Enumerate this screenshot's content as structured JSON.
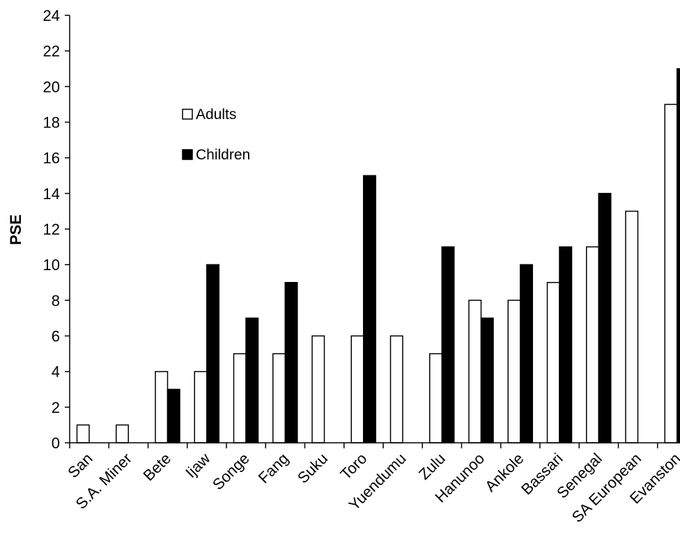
{
  "chart_data": {
    "type": "bar",
    "title": "",
    "xlabel": "",
    "ylabel": "PSE",
    "ylim": [
      0,
      24
    ],
    "yticks": [
      0,
      2,
      4,
      6,
      8,
      10,
      12,
      14,
      16,
      18,
      20,
      22,
      24
    ],
    "grid": false,
    "legend_position": "upper-left",
    "categories": [
      "San",
      "S.A. Miner",
      "Bete",
      "Ijaw",
      "Songe",
      "Fang",
      "Suku",
      "Toro",
      "Yuendumu",
      "Zulu",
      "Hanunoo",
      "Ankole",
      "Bassari",
      "Senegal",
      "SA European",
      "Evanston"
    ],
    "series": [
      {
        "name": "Adults",
        "color": "#ffffff",
        "values": [
          1,
          1,
          4,
          4,
          5,
          5,
          6,
          6,
          6,
          5,
          8,
          8,
          9,
          11,
          13,
          19
        ]
      },
      {
        "name": "Children",
        "color": "#000000",
        "values": [
          null,
          null,
          3,
          10,
          7,
          9,
          null,
          15,
          null,
          11,
          7,
          10,
          11,
          14,
          null,
          21
        ]
      }
    ]
  }
}
